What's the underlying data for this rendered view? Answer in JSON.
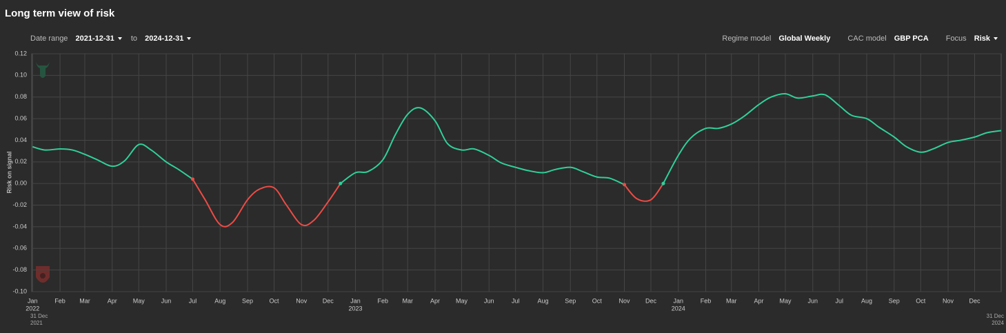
{
  "header": {
    "title": "Long term view of risk"
  },
  "controls": {
    "date_range_label": "Date range",
    "start_date": "2021-12-31",
    "to": "to",
    "end_date": "2024-12-31",
    "regime_model_label": "Regime model",
    "regime_model": "Global Weekly",
    "cac_model_label": "CAC model",
    "cac_model": "GBP PCA",
    "focus_label": "Focus",
    "focus": "Risk"
  },
  "chart_data": {
    "type": "line",
    "ylabel": "Risk on signal",
    "grid": true,
    "x": [
      "2022-01-01",
      "2022-01-15",
      "2022-02-01",
      "2022-02-15",
      "2022-03-01",
      "2022-03-15",
      "2022-04-01",
      "2022-04-15",
      "2022-05-01",
      "2022-05-15",
      "2022-06-01",
      "2022-06-15",
      "2022-07-01",
      "2022-07-15",
      "2022-08-01",
      "2022-08-15",
      "2022-09-01",
      "2022-09-15",
      "2022-10-01",
      "2022-10-15",
      "2022-11-01",
      "2022-11-15",
      "2022-12-01",
      "2022-12-15",
      "2023-01-01",
      "2023-01-15",
      "2023-02-01",
      "2023-02-15",
      "2023-03-01",
      "2023-03-15",
      "2023-04-01",
      "2023-04-15",
      "2023-05-01",
      "2023-05-15",
      "2023-06-01",
      "2023-06-15",
      "2023-07-01",
      "2023-07-15",
      "2023-08-01",
      "2023-08-15",
      "2023-09-01",
      "2023-09-15",
      "2023-10-01",
      "2023-10-15",
      "2023-11-01",
      "2023-11-15",
      "2023-12-01",
      "2023-12-15",
      "2024-01-01",
      "2024-01-15",
      "2024-02-01",
      "2024-02-15",
      "2024-03-01",
      "2024-03-15",
      "2024-04-01",
      "2024-04-15",
      "2024-05-01",
      "2024-05-15",
      "2024-06-01",
      "2024-06-15",
      "2024-07-01",
      "2024-07-15",
      "2024-08-01",
      "2024-08-15",
      "2024-09-01",
      "2024-09-15",
      "2024-10-01",
      "2024-10-15",
      "2024-11-01",
      "2024-11-15",
      "2024-12-01",
      "2024-12-15",
      "2024-12-31"
    ],
    "series": [
      {
        "color": "#2fd19a",
        "values": [
          0.034,
          0.031,
          0.032,
          0.031,
          0.027,
          0.022,
          0.016,
          0.021,
          0.036,
          0.031,
          0.02,
          0.013,
          0.004,
          null,
          null,
          null,
          null,
          null,
          null,
          null,
          null,
          null,
          null,
          0,
          0.01,
          0.011,
          0.022,
          0.045,
          0.064,
          0.07,
          0.058,
          0.037,
          0.031,
          0.032,
          0.026,
          0.019,
          0.015,
          0.012,
          0.01,
          0.013,
          0.015,
          0.011,
          0.006,
          0.005,
          -0.001,
          null,
          null,
          0,
          0.026,
          0.042,
          0.051,
          0.051,
          0.055,
          0.062,
          0.073,
          0.08,
          0.083,
          0.079,
          0.081,
          0.082,
          0.072,
          0.063,
          0.06,
          0.052,
          0.043,
          0.034,
          0.029,
          0.032,
          0.038,
          0.04,
          0.043,
          0.047,
          0.049
        ]
      },
      {
        "color": "#ef4b45",
        "values": [
          null,
          null,
          null,
          null,
          null,
          null,
          null,
          null,
          null,
          null,
          null,
          null,
          0.004,
          -0.015,
          -0.038,
          -0.036,
          -0.015,
          -0.005,
          -0.004,
          -0.02,
          -0.038,
          -0.034,
          -0.017,
          0,
          null,
          null,
          null,
          null,
          null,
          null,
          null,
          null,
          null,
          null,
          null,
          null,
          null,
          null,
          null,
          null,
          null,
          null,
          null,
          null,
          -0.001,
          -0.014,
          -0.015,
          0,
          null,
          null,
          null,
          null,
          null,
          null,
          null,
          null,
          null,
          null,
          null,
          null,
          null,
          null,
          null,
          null,
          null,
          null,
          null,
          null,
          null,
          null,
          null,
          null,
          null
        ]
      }
    ],
    "xlim": [
      "2021-12-31",
      "2024-12-31"
    ],
    "xlim_labels": [
      {
        "day": "31 Dec",
        "year": "2021"
      },
      {
        "day": "31 Dec",
        "year": "2024"
      }
    ],
    "xticks": [
      {
        "value": "2022-01-01",
        "label": "Jan"
      },
      {
        "value": "2022-02-01",
        "label": "Feb"
      },
      {
        "value": "2022-03-01",
        "label": "Mar"
      },
      {
        "value": "2022-04-01",
        "label": "Apr"
      },
      {
        "value": "2022-05-01",
        "label": "May"
      },
      {
        "value": "2022-06-01",
        "label": "Jun"
      },
      {
        "value": "2022-07-01",
        "label": "Jul"
      },
      {
        "value": "2022-08-01",
        "label": "Aug"
      },
      {
        "value": "2022-09-01",
        "label": "Sep"
      },
      {
        "value": "2022-10-01",
        "label": "Oct"
      },
      {
        "value": "2022-11-01",
        "label": "Nov"
      },
      {
        "value": "2022-12-01",
        "label": "Dec"
      },
      {
        "value": "2023-01-01",
        "label": "Jan"
      },
      {
        "value": "2023-02-01",
        "label": "Feb"
      },
      {
        "value": "2023-03-01",
        "label": "Mar"
      },
      {
        "value": "2023-04-01",
        "label": "Apr"
      },
      {
        "value": "2023-05-01",
        "label": "May"
      },
      {
        "value": "2023-06-01",
        "label": "Jun"
      },
      {
        "value": "2023-07-01",
        "label": "Jul"
      },
      {
        "value": "2023-08-01",
        "label": "Aug"
      },
      {
        "value": "2023-09-01",
        "label": "Sep"
      },
      {
        "value": "2023-10-01",
        "label": "Oct"
      },
      {
        "value": "2023-11-01",
        "label": "Nov"
      },
      {
        "value": "2023-12-01",
        "label": "Dec"
      },
      {
        "value": "2024-01-01",
        "label": "Jan"
      },
      {
        "value": "2024-02-01",
        "label": "Feb"
      },
      {
        "value": "2024-03-01",
        "label": "Mar"
      },
      {
        "value": "2024-04-01",
        "label": "Apr"
      },
      {
        "value": "2024-05-01",
        "label": "May"
      },
      {
        "value": "2024-06-01",
        "label": "Jun"
      },
      {
        "value": "2024-07-01",
        "label": "Jul"
      },
      {
        "value": "2024-08-01",
        "label": "Aug"
      },
      {
        "value": "2024-09-01",
        "label": "Sep"
      },
      {
        "value": "2024-10-01",
        "label": "Oct"
      },
      {
        "value": "2024-11-01",
        "label": "Nov"
      },
      {
        "value": "2024-12-01",
        "label": "Dec"
      }
    ],
    "year_labels": [
      {
        "value": "2022-01-01",
        "label": "2022"
      },
      {
        "value": "2023-01-01",
        "label": "2023"
      },
      {
        "value": "2024-01-01",
        "label": "2024"
      }
    ],
    "ylim": [
      -0.1,
      0.12
    ],
    "yticks": [
      {
        "value": -0.1,
        "label": "-0.10"
      },
      -0.08,
      -0.06,
      -0.04,
      -0.02,
      {
        "value": 0,
        "label": "0.00"
      },
      0.02,
      0.04,
      0.06,
      0.08,
      {
        "value": 0.1,
        "label": "0.10"
      },
      0.12
    ]
  }
}
